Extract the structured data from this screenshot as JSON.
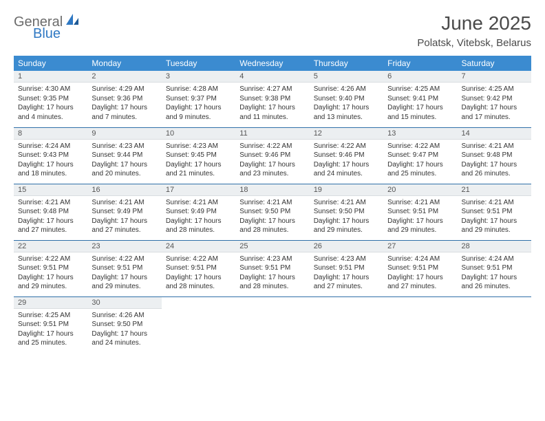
{
  "brand": {
    "line1": "General",
    "line2": "Blue"
  },
  "title": "June 2025",
  "subtitle": "Polatsk, Vitebsk, Belarus",
  "colors": {
    "header_bg": "#3b8bd0",
    "header_text": "#ffffff",
    "daynum_bg": "#eceff1",
    "row_divider": "#2f6fa8",
    "logo_gray": "#6b6b6b",
    "logo_blue": "#2f78c3"
  },
  "weekdays": [
    "Sunday",
    "Monday",
    "Tuesday",
    "Wednesday",
    "Thursday",
    "Friday",
    "Saturday"
  ],
  "days": [
    {
      "n": "1",
      "sunrise": "4:30 AM",
      "sunset": "9:35 PM",
      "daylight": "17 hours and 4 minutes."
    },
    {
      "n": "2",
      "sunrise": "4:29 AM",
      "sunset": "9:36 PM",
      "daylight": "17 hours and 7 minutes."
    },
    {
      "n": "3",
      "sunrise": "4:28 AM",
      "sunset": "9:37 PM",
      "daylight": "17 hours and 9 minutes."
    },
    {
      "n": "4",
      "sunrise": "4:27 AM",
      "sunset": "9:38 PM",
      "daylight": "17 hours and 11 minutes."
    },
    {
      "n": "5",
      "sunrise": "4:26 AM",
      "sunset": "9:40 PM",
      "daylight": "17 hours and 13 minutes."
    },
    {
      "n": "6",
      "sunrise": "4:25 AM",
      "sunset": "9:41 PM",
      "daylight": "17 hours and 15 minutes."
    },
    {
      "n": "7",
      "sunrise": "4:25 AM",
      "sunset": "9:42 PM",
      "daylight": "17 hours and 17 minutes."
    },
    {
      "n": "8",
      "sunrise": "4:24 AM",
      "sunset": "9:43 PM",
      "daylight": "17 hours and 18 minutes."
    },
    {
      "n": "9",
      "sunrise": "4:23 AM",
      "sunset": "9:44 PM",
      "daylight": "17 hours and 20 minutes."
    },
    {
      "n": "10",
      "sunrise": "4:23 AM",
      "sunset": "9:45 PM",
      "daylight": "17 hours and 21 minutes."
    },
    {
      "n": "11",
      "sunrise": "4:22 AM",
      "sunset": "9:46 PM",
      "daylight": "17 hours and 23 minutes."
    },
    {
      "n": "12",
      "sunrise": "4:22 AM",
      "sunset": "9:46 PM",
      "daylight": "17 hours and 24 minutes."
    },
    {
      "n": "13",
      "sunrise": "4:22 AM",
      "sunset": "9:47 PM",
      "daylight": "17 hours and 25 minutes."
    },
    {
      "n": "14",
      "sunrise": "4:21 AM",
      "sunset": "9:48 PM",
      "daylight": "17 hours and 26 minutes."
    },
    {
      "n": "15",
      "sunrise": "4:21 AM",
      "sunset": "9:48 PM",
      "daylight": "17 hours and 27 minutes."
    },
    {
      "n": "16",
      "sunrise": "4:21 AM",
      "sunset": "9:49 PM",
      "daylight": "17 hours and 27 minutes."
    },
    {
      "n": "17",
      "sunrise": "4:21 AM",
      "sunset": "9:49 PM",
      "daylight": "17 hours and 28 minutes."
    },
    {
      "n": "18",
      "sunrise": "4:21 AM",
      "sunset": "9:50 PM",
      "daylight": "17 hours and 28 minutes."
    },
    {
      "n": "19",
      "sunrise": "4:21 AM",
      "sunset": "9:50 PM",
      "daylight": "17 hours and 29 minutes."
    },
    {
      "n": "20",
      "sunrise": "4:21 AM",
      "sunset": "9:51 PM",
      "daylight": "17 hours and 29 minutes."
    },
    {
      "n": "21",
      "sunrise": "4:21 AM",
      "sunset": "9:51 PM",
      "daylight": "17 hours and 29 minutes."
    },
    {
      "n": "22",
      "sunrise": "4:22 AM",
      "sunset": "9:51 PM",
      "daylight": "17 hours and 29 minutes."
    },
    {
      "n": "23",
      "sunrise": "4:22 AM",
      "sunset": "9:51 PM",
      "daylight": "17 hours and 29 minutes."
    },
    {
      "n": "24",
      "sunrise": "4:22 AM",
      "sunset": "9:51 PM",
      "daylight": "17 hours and 28 minutes."
    },
    {
      "n": "25",
      "sunrise": "4:23 AM",
      "sunset": "9:51 PM",
      "daylight": "17 hours and 28 minutes."
    },
    {
      "n": "26",
      "sunrise": "4:23 AM",
      "sunset": "9:51 PM",
      "daylight": "17 hours and 27 minutes."
    },
    {
      "n": "27",
      "sunrise": "4:24 AM",
      "sunset": "9:51 PM",
      "daylight": "17 hours and 27 minutes."
    },
    {
      "n": "28",
      "sunrise": "4:24 AM",
      "sunset": "9:51 PM",
      "daylight": "17 hours and 26 minutes."
    },
    {
      "n": "29",
      "sunrise": "4:25 AM",
      "sunset": "9:51 PM",
      "daylight": "17 hours and 25 minutes."
    },
    {
      "n": "30",
      "sunrise": "4:26 AM",
      "sunset": "9:50 PM",
      "daylight": "17 hours and 24 minutes."
    }
  ],
  "labels": {
    "sunrise": "Sunrise: ",
    "sunset": "Sunset: ",
    "daylight": "Daylight: "
  }
}
